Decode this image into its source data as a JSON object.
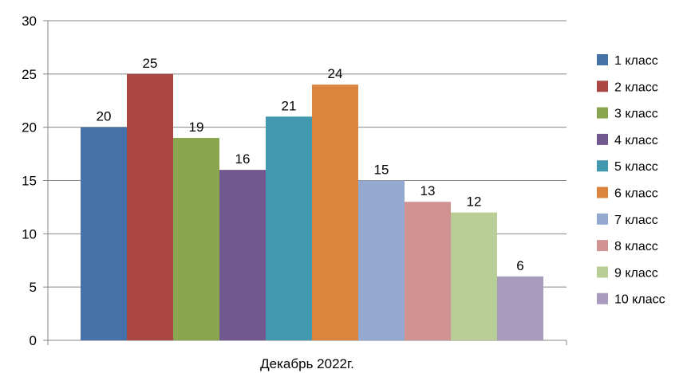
{
  "chart_data": {
    "type": "bar",
    "categories": [
      "Декабрь 2022г."
    ],
    "series": [
      {
        "name": "1 класс",
        "values": [
          20
        ],
        "color": "#4572A7"
      },
      {
        "name": "2 класс",
        "values": [
          25
        ],
        "color": "#AA4643"
      },
      {
        "name": "3 класс",
        "values": [
          19
        ],
        "color": "#89A54E"
      },
      {
        "name": "4 класс",
        "values": [
          16
        ],
        "color": "#71588F"
      },
      {
        "name": "5 класс",
        "values": [
          21
        ],
        "color": "#4198AF"
      },
      {
        "name": "6 класс",
        "values": [
          24
        ],
        "color": "#DB843D"
      },
      {
        "name": "7 класс",
        "values": [
          15
        ],
        "color": "#93A9CF"
      },
      {
        "name": "8 класс",
        "values": [
          13
        ],
        "color": "#D19392"
      },
      {
        "name": "9 класс",
        "values": [
          12
        ],
        "color": "#B9CD96"
      },
      {
        "name": "10 класс",
        "values": [
          6
        ],
        "color": "#A99BBD"
      }
    ],
    "ylim": [
      0,
      30
    ],
    "yticks": [
      0,
      5,
      10,
      15,
      20,
      25,
      30
    ],
    "grid": true,
    "legend": "right",
    "data_labels": true
  }
}
